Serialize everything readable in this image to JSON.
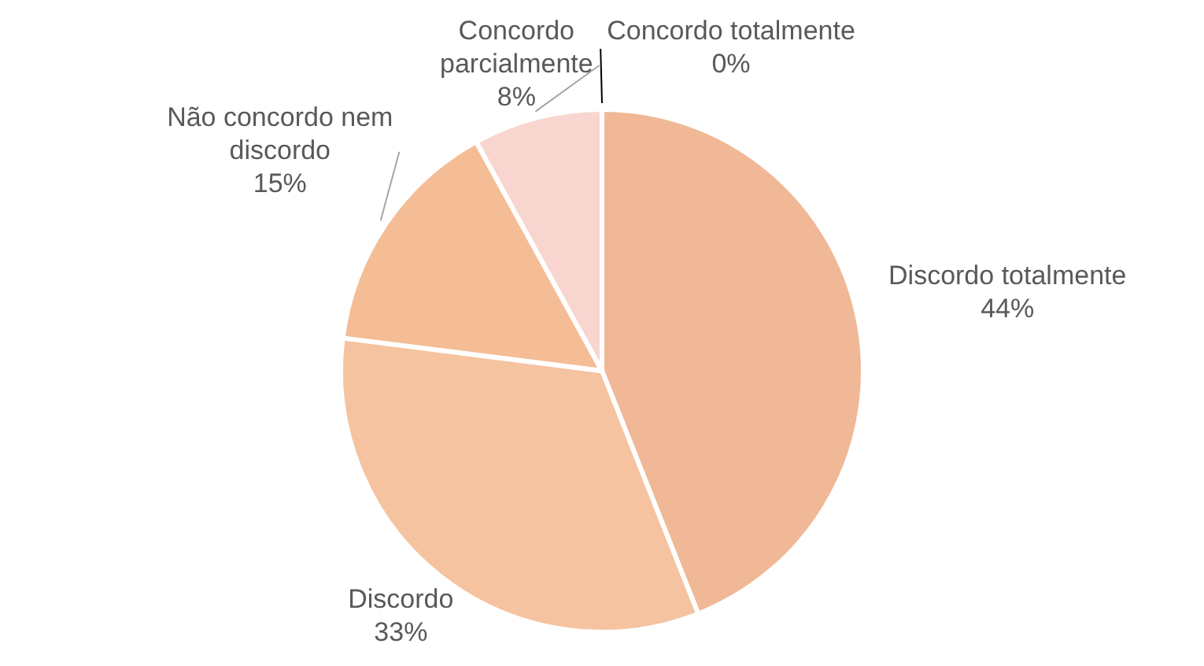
{
  "chart_data": {
    "type": "pie",
    "categories": [
      "Discordo totalmente",
      "Discordo",
      "Não concordo nem discordo",
      "Concordo parcialmente",
      "Concordo totalmente"
    ],
    "values": [
      44,
      33,
      15,
      8,
      0
    ],
    "value_labels": [
      "44%",
      "33%",
      "15%",
      "8%",
      "0%"
    ],
    "colors": [
      "#f0b896",
      "#f5c3a0",
      "#f5bd95",
      "#f8d6cf",
      "#f4cfc0"
    ],
    "legend": false
  }
}
